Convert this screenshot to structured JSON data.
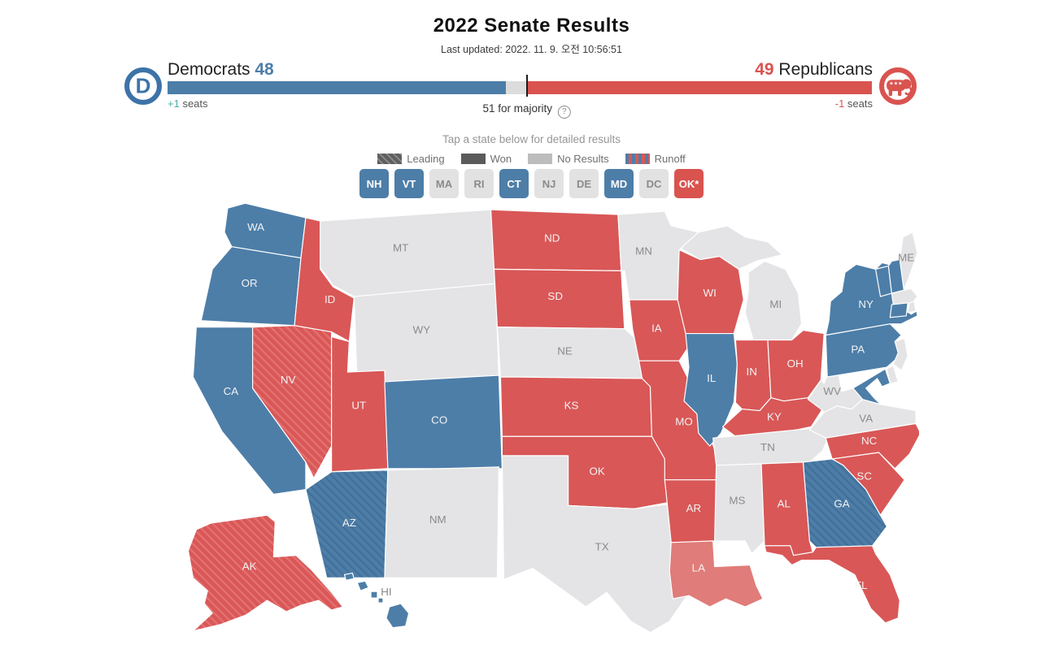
{
  "header": {
    "title": "2022 Senate Results",
    "last_updated": "Last updated: 2022. 11. 9. 오전 10:56:51"
  },
  "seat_bar": {
    "dem_label": "Democrats",
    "dem_seats": "48",
    "dem_count": 48,
    "dem_change": "+1",
    "dem_change_suffix": " seats",
    "rep_label": "Republicans",
    "rep_seats": "49",
    "rep_count": 49,
    "rep_change": "-1",
    "rep_change_suffix": " seats",
    "majority_label": "51 for majority",
    "majority_seats": 51,
    "total_seats": 100
  },
  "icons": {
    "help": "?"
  },
  "logos": {
    "dem_letter": "D",
    "rep_stars": "★★★"
  },
  "hint": "Tap a state below for detailed results",
  "legend": [
    {
      "label": "Leading",
      "swatch": "leading"
    },
    {
      "label": "Won",
      "swatch": "won"
    },
    {
      "label": "No Results",
      "swatch": "none"
    },
    {
      "label": "Runoff",
      "swatch": "runoff"
    }
  ],
  "small_states": [
    {
      "code": "NH",
      "party": "dem"
    },
    {
      "code": "VT",
      "party": "dem"
    },
    {
      "code": "MA",
      "party": "none"
    },
    {
      "code": "RI",
      "party": "none"
    },
    {
      "code": "CT",
      "party": "dem"
    },
    {
      "code": "NJ",
      "party": "none"
    },
    {
      "code": "DE",
      "party": "none"
    },
    {
      "code": "MD",
      "party": "dem"
    },
    {
      "code": "DC",
      "party": "none"
    },
    {
      "code": "OK*",
      "party": "rep"
    }
  ],
  "colors": {
    "dem": "#4d7ea8",
    "rep": "#d95757",
    "rep_light": "#e07c79",
    "none": "#e4e4e6",
    "bar_rep": "#d9534f",
    "dem_change": "#4cb0a6",
    "label_on_gray": "#8a8a8a",
    "label_on_color": "#f2f2f2"
  },
  "states": [
    {
      "code": "WA",
      "party": "dem",
      "status": "won"
    },
    {
      "code": "OR",
      "party": "dem",
      "status": "won"
    },
    {
      "code": "CA",
      "party": "dem",
      "status": "won"
    },
    {
      "code": "NV",
      "party": "rep",
      "status": "leading"
    },
    {
      "code": "ID",
      "party": "rep",
      "status": "won"
    },
    {
      "code": "MT",
      "party": "none",
      "status": "none"
    },
    {
      "code": "WY",
      "party": "none",
      "status": "none"
    },
    {
      "code": "UT",
      "party": "rep",
      "status": "won"
    },
    {
      "code": "CO",
      "party": "dem",
      "status": "won"
    },
    {
      "code": "AZ",
      "party": "dem",
      "status": "leading"
    },
    {
      "code": "NM",
      "party": "none",
      "status": "none"
    },
    {
      "code": "TX",
      "party": "none",
      "status": "none"
    },
    {
      "code": "AK",
      "party": "rep",
      "status": "leading"
    },
    {
      "code": "HI",
      "party": "dem",
      "status": "won"
    },
    {
      "code": "ND",
      "party": "rep",
      "status": "won"
    },
    {
      "code": "SD",
      "party": "rep",
      "status": "won"
    },
    {
      "code": "NE",
      "party": "none",
      "status": "none"
    },
    {
      "code": "KS",
      "party": "rep",
      "status": "won"
    },
    {
      "code": "OK",
      "party": "rep",
      "status": "won"
    },
    {
      "code": "MN",
      "party": "none",
      "status": "none"
    },
    {
      "code": "IA",
      "party": "rep",
      "status": "won"
    },
    {
      "code": "MO",
      "party": "rep",
      "status": "won"
    },
    {
      "code": "AR",
      "party": "rep",
      "status": "won"
    },
    {
      "code": "LA",
      "party": "rep",
      "status": "won",
      "variant": "light"
    },
    {
      "code": "WI",
      "party": "rep",
      "status": "won"
    },
    {
      "code": "IL",
      "party": "dem",
      "status": "won"
    },
    {
      "code": "MI",
      "party": "none",
      "status": "none"
    },
    {
      "code": "IN",
      "party": "rep",
      "status": "won"
    },
    {
      "code": "OH",
      "party": "rep",
      "status": "won"
    },
    {
      "code": "KY",
      "party": "rep",
      "status": "won"
    },
    {
      "code": "TN",
      "party": "none",
      "status": "none"
    },
    {
      "code": "MS",
      "party": "none",
      "status": "none"
    },
    {
      "code": "AL",
      "party": "rep",
      "status": "won"
    },
    {
      "code": "GA",
      "party": "dem",
      "status": "leading"
    },
    {
      "code": "FL",
      "party": "rep",
      "status": "won"
    },
    {
      "code": "SC",
      "party": "rep",
      "status": "won"
    },
    {
      "code": "NC",
      "party": "rep",
      "status": "won"
    },
    {
      "code": "VA",
      "party": "none",
      "status": "none"
    },
    {
      "code": "WV",
      "party": "none",
      "status": "none"
    },
    {
      "code": "PA",
      "party": "dem",
      "status": "won"
    },
    {
      "code": "NY",
      "party": "dem",
      "status": "won"
    },
    {
      "code": "VT",
      "party": "dem",
      "status": "won"
    },
    {
      "code": "NH",
      "party": "dem",
      "status": "won"
    },
    {
      "code": "ME",
      "party": "none",
      "status": "none"
    },
    {
      "code": "MA",
      "party": "none",
      "status": "none"
    },
    {
      "code": "CT",
      "party": "dem",
      "status": "won"
    },
    {
      "code": "RI",
      "party": "none",
      "status": "none"
    },
    {
      "code": "NJ",
      "party": "none",
      "status": "none"
    },
    {
      "code": "DE",
      "party": "none",
      "status": "none"
    },
    {
      "code": "MD",
      "party": "dem",
      "status": "won"
    }
  ]
}
